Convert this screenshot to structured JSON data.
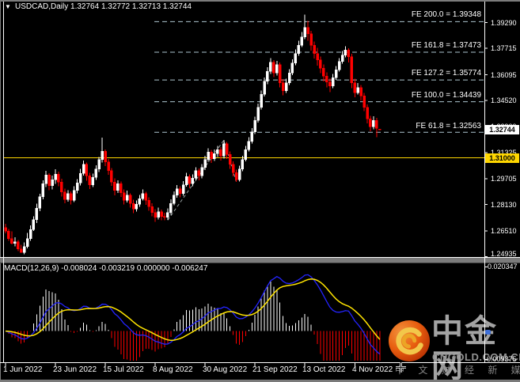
{
  "window": {
    "title_symbol": "USDCAD,Daily",
    "title_quotes": "1.32764 1.32772 1.32713 1.32744",
    "dropdown_glyph": "▼"
  },
  "colors": {
    "background": "#000000",
    "bull_candle": "#FFFFFF",
    "bear_candle": "#FF0000",
    "macd_line": "#2424FF",
    "signal_line": "#FFE400",
    "histogram_up": "#FFFFFF",
    "histogram_down": "#FF0000",
    "horizontal_line": "#FFD700",
    "fib_level_line": "#AEC6CF",
    "fib_anchor_line": "#99A2A2",
    "axis_text": "#FFFFFF",
    "logo_orange": "#F4610F"
  },
  "chart_data": {
    "type": "candlestick+macd",
    "symbol": "USDCAD",
    "timeframe": "Daily",
    "current_bar": {
      "open": "1.32764",
      "high": "1.32772",
      "low": "1.32713",
      "close": "1.32744"
    },
    "price_axis": [
      "1.39290",
      "1.37715",
      "1.36095",
      "1.34520",
      "1.32900",
      "1.31325",
      "1.29705",
      "1.28130",
      "1.26510",
      "1.24935"
    ],
    "time_axis": [
      {
        "label": "1 Jun 2022",
        "bar": 0
      },
      {
        "label": "23 Jun 2022",
        "bar": 16
      },
      {
        "label": "15 Jul 2022",
        "bar": 32
      },
      {
        "label": "8 Aug 2022",
        "bar": 48
      },
      {
        "label": "30 Aug 2022",
        "bar": 64
      },
      {
        "label": "21 Sep 2022",
        "bar": 80
      },
      {
        "label": "13 Oct 2022",
        "bar": 96
      },
      {
        "label": "4 Nov 2022",
        "bar": 112
      }
    ],
    "hline": {
      "label": "1.31000",
      "value": 1.31
    },
    "current_price": {
      "label": "1.32744",
      "value": 1.32744
    },
    "fibonacci_expansion": {
      "points": [
        {
          "bar": 52,
          "price": 1.2717
        },
        {
          "bar": 70,
          "price": 1.3208
        },
        {
          "bar": 74,
          "price": 1.29528
        }
      ],
      "levels": [
        {
          "label": "FE 200.0 = 1.39348",
          "value": 1.39348
        },
        {
          "label": "FE 161.8 = 1.37473",
          "value": 1.37473
        },
        {
          "label": "FE 127.2 = 1.35774",
          "value": 1.35774
        },
        {
          "label": "FE 100.0 = 1.34439",
          "value": 1.34439
        },
        {
          "label": "FE 61.8 = 1.32563",
          "value": 1.32563
        }
      ]
    },
    "macd": {
      "display_line": "MACD(12,26,9) -0.008024 -0.003219 0.000000 -0.006247",
      "params": [
        12,
        26,
        9
      ],
      "values": [
        "-0.008024",
        "-0.003219",
        "0.000000",
        "-0.006247"
      ],
      "scale_max": "0.020347",
      "scale_min": "-0.009375"
    },
    "candles": [
      [
        1.2672,
        1.2695,
        1.2638,
        1.265
      ],
      [
        1.265,
        1.2663,
        1.259,
        1.2605
      ],
      [
        1.2605,
        1.2648,
        1.257,
        1.2575
      ],
      [
        1.2575,
        1.2612,
        1.2556,
        1.2585
      ],
      [
        1.2585,
        1.2596,
        1.2528,
        1.254
      ],
      [
        1.254,
        1.2566,
        1.2518,
        1.252
      ],
      [
        1.252,
        1.2582,
        1.2508,
        1.2555
      ],
      [
        1.2555,
        1.264,
        1.2545,
        1.2605
      ],
      [
        1.2605,
        1.2685,
        1.259,
        1.266
      ],
      [
        1.266,
        1.2742,
        1.2652,
        1.272
      ],
      [
        1.272,
        1.2818,
        1.27,
        1.279
      ],
      [
        1.279,
        1.288,
        1.2772,
        1.286
      ],
      [
        1.286,
        1.2962,
        1.2845,
        1.294
      ],
      [
        1.294,
        1.302,
        1.292,
        1.2995
      ],
      [
        1.2995,
        1.3005,
        1.29,
        1.293
      ],
      [
        1.293,
        1.299,
        1.2905,
        1.2965
      ],
      [
        1.2965,
        1.303,
        1.294,
        1.3
      ],
      [
        1.3,
        1.3015,
        1.2925,
        1.295
      ],
      [
        1.295,
        1.2972,
        1.2862,
        1.289
      ],
      [
        1.289,
        1.2912,
        1.282,
        1.2845
      ],
      [
        1.2845,
        1.2902,
        1.283,
        1.288
      ],
      [
        1.288,
        1.2895,
        1.2815,
        1.284
      ],
      [
        1.284,
        1.2925,
        1.2828,
        1.29
      ],
      [
        1.29,
        1.297,
        1.2882,
        1.2945
      ],
      [
        1.2945,
        1.3032,
        1.293,
        1.3005
      ],
      [
        1.3005,
        1.3084,
        1.299,
        1.306
      ],
      [
        1.306,
        1.3072,
        1.296,
        1.299
      ],
      [
        1.299,
        1.3008,
        1.2908,
        1.2935
      ],
      [
        1.2935,
        1.3002,
        1.292,
        1.298
      ],
      [
        1.298,
        1.3055,
        1.2965,
        1.303
      ],
      [
        1.303,
        1.3105,
        1.3012,
        1.309
      ],
      [
        1.309,
        1.3224,
        1.3072,
        1.314
      ],
      [
        1.314,
        1.3152,
        1.3048,
        1.3075
      ],
      [
        1.3075,
        1.3092,
        1.2995,
        1.302
      ],
      [
        1.302,
        1.3038,
        1.2928,
        1.295
      ],
      [
        1.295,
        1.2975,
        1.287,
        1.29
      ],
      [
        1.29,
        1.2962,
        1.2885,
        1.294
      ],
      [
        1.294,
        1.2955,
        1.286,
        1.2885
      ],
      [
        1.2885,
        1.2905,
        1.2815,
        1.284
      ],
      [
        1.284,
        1.2898,
        1.2825,
        1.287
      ],
      [
        1.287,
        1.2882,
        1.2795,
        1.282
      ],
      [
        1.282,
        1.2842,
        1.276,
        1.2785
      ],
      [
        1.2785,
        1.2838,
        1.277,
        1.2815
      ],
      [
        1.2815,
        1.2872,
        1.28,
        1.285
      ],
      [
        1.285,
        1.2905,
        1.2838,
        1.288
      ],
      [
        1.288,
        1.2892,
        1.2812,
        1.284
      ],
      [
        1.284,
        1.2858,
        1.2775,
        1.28
      ],
      [
        1.28,
        1.2822,
        1.274,
        1.2765
      ],
      [
        1.2765,
        1.2785,
        1.2708,
        1.2735
      ],
      [
        1.2735,
        1.2795,
        1.2722,
        1.277
      ],
      [
        1.277,
        1.2782,
        1.2718,
        1.274
      ],
      [
        1.274,
        1.2762,
        1.2717,
        1.2735
      ],
      [
        1.2735,
        1.279,
        1.272,
        1.2765
      ],
      [
        1.2765,
        1.2845,
        1.2752,
        1.282
      ],
      [
        1.282,
        1.2895,
        1.2808,
        1.287
      ],
      [
        1.287,
        1.2932,
        1.2855,
        1.291
      ],
      [
        1.291,
        1.2925,
        1.2858,
        1.288
      ],
      [
        1.288,
        1.2958,
        1.2868,
        1.2935
      ],
      [
        1.2935,
        1.3008,
        1.2922,
        1.2985
      ],
      [
        1.2985,
        1.2998,
        1.2915,
        1.294
      ],
      [
        1.294,
        1.2998,
        1.2925,
        1.2975
      ],
      [
        1.2975,
        1.3042,
        1.296,
        1.302
      ],
      [
        1.302,
        1.3035,
        1.2962,
        1.299
      ],
      [
        1.299,
        1.3062,
        1.2975,
        1.304
      ],
      [
        1.304,
        1.3112,
        1.3025,
        1.309
      ],
      [
        1.309,
        1.3158,
        1.3075,
        1.3135
      ],
      [
        1.3135,
        1.3148,
        1.3068,
        1.3095
      ],
      [
        1.3095,
        1.315,
        1.308,
        1.3125
      ],
      [
        1.3125,
        1.3172,
        1.3105,
        1.315
      ],
      [
        1.315,
        1.3165,
        1.3082,
        1.311
      ],
      [
        1.311,
        1.3208,
        1.3095,
        1.3185
      ],
      [
        1.3185,
        1.3198,
        1.3092,
        1.312
      ],
      [
        1.312,
        1.3138,
        1.3032,
        1.306
      ],
      [
        1.306,
        1.3078,
        1.2985,
        1.301
      ],
      [
        1.301,
        1.3028,
        1.2953,
        1.2965
      ],
      [
        1.2965,
        1.3052,
        1.2955,
        1.303
      ],
      [
        1.303,
        1.3112,
        1.3018,
        1.309
      ],
      [
        1.309,
        1.3172,
        1.3078,
        1.315
      ],
      [
        1.315,
        1.3225,
        1.3138,
        1.32
      ],
      [
        1.32,
        1.3282,
        1.3188,
        1.326
      ],
      [
        1.326,
        1.3352,
        1.3245,
        1.333
      ],
      [
        1.333,
        1.3432,
        1.3315,
        1.341
      ],
      [
        1.341,
        1.3512,
        1.3395,
        1.349
      ],
      [
        1.349,
        1.3592,
        1.3475,
        1.357
      ],
      [
        1.357,
        1.3655,
        1.3552,
        1.363
      ],
      [
        1.363,
        1.371,
        1.3615,
        1.3685
      ],
      [
        1.3685,
        1.3698,
        1.3595,
        1.362
      ],
      [
        1.362,
        1.3695,
        1.3605,
        1.367
      ],
      [
        1.367,
        1.3685,
        1.3532,
        1.356
      ],
      [
        1.356,
        1.3582,
        1.3482,
        1.351
      ],
      [
        1.351,
        1.3585,
        1.3498,
        1.356
      ],
      [
        1.356,
        1.3642,
        1.3545,
        1.362
      ],
      [
        1.362,
        1.3705,
        1.3608,
        1.368
      ],
      [
        1.368,
        1.3765,
        1.3668,
        1.374
      ],
      [
        1.374,
        1.3818,
        1.3725,
        1.379
      ],
      [
        1.379,
        1.3872,
        1.3778,
        1.384
      ],
      [
        1.384,
        1.3978,
        1.3828,
        1.39
      ],
      [
        1.39,
        1.3938,
        1.3818,
        1.386
      ],
      [
        1.386,
        1.3878,
        1.3758,
        1.379
      ],
      [
        1.379,
        1.3812,
        1.3708,
        1.374
      ],
      [
        1.374,
        1.3775,
        1.3665,
        1.37
      ],
      [
        1.37,
        1.3722,
        1.3618,
        1.365
      ],
      [
        1.365,
        1.3672,
        1.3568,
        1.36
      ],
      [
        1.36,
        1.3625,
        1.3532,
        1.3565
      ],
      [
        1.3565,
        1.3588,
        1.3502,
        1.354
      ],
      [
        1.354,
        1.3615,
        1.3528,
        1.359
      ],
      [
        1.359,
        1.3662,
        1.3578,
        1.364
      ],
      [
        1.364,
        1.3712,
        1.3628,
        1.369
      ],
      [
        1.369,
        1.3755,
        1.3678,
        1.373
      ],
      [
        1.373,
        1.3785,
        1.3715,
        1.376
      ],
      [
        1.376,
        1.3772,
        1.3685,
        1.372
      ],
      [
        1.372,
        1.3738,
        1.3528,
        1.356
      ],
      [
        1.356,
        1.3585,
        1.3472,
        1.35
      ],
      [
        1.35,
        1.3558,
        1.3488,
        1.353
      ],
      [
        1.353,
        1.3545,
        1.3452,
        1.348
      ],
      [
        1.348,
        1.3498,
        1.3385,
        1.341
      ],
      [
        1.341,
        1.3428,
        1.3312,
        1.334
      ],
      [
        1.334,
        1.3358,
        1.3262,
        1.329
      ],
      [
        1.329,
        1.3355,
        1.3275,
        1.333
      ],
      [
        1.333,
        1.3345,
        1.3227,
        1.328
      ],
      [
        1.32764,
        1.32772,
        1.32713,
        1.32744
      ]
    ]
  },
  "watermark": {
    "brand": "中金网",
    "domain": "CNGOLD.COM.CN",
    "tagline": "中 文 财 经 新 媒 体"
  }
}
